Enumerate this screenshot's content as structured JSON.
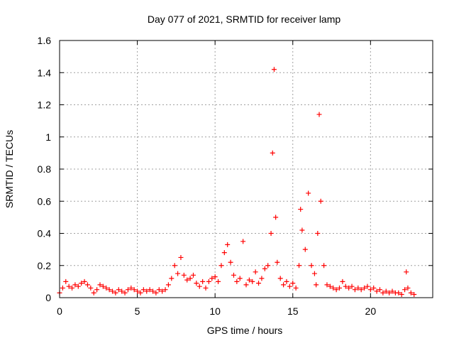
{
  "chart_data": {
    "type": "scatter",
    "title": "Day 077 of 2021, SRMTID for receiver lamp",
    "xlabel": "GPS time / hours",
    "ylabel": "SRMTID / TECUs",
    "xlim": [
      0,
      24
    ],
    "ylim": [
      0,
      1.6
    ],
    "xticks": [
      0,
      5,
      10,
      15,
      20
    ],
    "xtick_labels": [
      "0",
      "5",
      "10",
      "15",
      "20"
    ],
    "yticks": [
      0,
      0.2,
      0.4,
      0.6,
      0.8,
      1.0,
      1.2,
      1.4,
      1.6
    ],
    "ytick_labels": [
      "0",
      "0.2",
      "0.4",
      "0.6",
      "0.8",
      "1",
      "1.2",
      "1.4",
      "1.6"
    ],
    "grid": true,
    "marker": "+",
    "color": "#ff0000",
    "series": [
      {
        "name": "SRMTID",
        "x": [
          0.0,
          0.2,
          0.4,
          0.6,
          0.8,
          1.0,
          1.2,
          1.4,
          1.6,
          1.8,
          2.0,
          2.2,
          2.4,
          2.6,
          2.8,
          3.0,
          3.2,
          3.4,
          3.6,
          3.8,
          4.0,
          4.2,
          4.4,
          4.6,
          4.8,
          5.0,
          5.2,
          5.4,
          5.6,
          5.8,
          6.0,
          6.2,
          6.4,
          6.6,
          6.8,
          7.0,
          7.2,
          7.4,
          7.6,
          7.8,
          8.0,
          8.2,
          8.4,
          8.6,
          8.8,
          9.0,
          9.2,
          9.4,
          9.6,
          9.8,
          10.0,
          10.2,
          10.4,
          10.6,
          10.8,
          11.0,
          11.2,
          11.4,
          11.6,
          11.8,
          12.0,
          12.2,
          12.4,
          12.6,
          12.8,
          13.0,
          13.2,
          13.4,
          13.6,
          13.7,
          13.8,
          13.9,
          14.0,
          14.2,
          14.4,
          14.6,
          14.8,
          15.0,
          15.2,
          15.4,
          15.5,
          15.6,
          15.8,
          16.0,
          16.2,
          16.4,
          16.5,
          16.6,
          16.7,
          16.8,
          17.0,
          17.2,
          17.4,
          17.6,
          17.8,
          18.0,
          18.2,
          18.4,
          18.6,
          18.8,
          19.0,
          19.2,
          19.4,
          19.6,
          19.8,
          20.0,
          20.2,
          20.4,
          20.6,
          20.8,
          21.0,
          21.2,
          21.4,
          21.6,
          21.8,
          22.0,
          22.2,
          22.3,
          22.4,
          22.6,
          22.8
        ],
        "y": [
          0.03,
          0.06,
          0.1,
          0.07,
          0.06,
          0.08,
          0.07,
          0.09,
          0.1,
          0.08,
          0.06,
          0.03,
          0.05,
          0.08,
          0.07,
          0.06,
          0.05,
          0.04,
          0.03,
          0.05,
          0.04,
          0.03,
          0.05,
          0.06,
          0.05,
          0.04,
          0.03,
          0.05,
          0.04,
          0.05,
          0.04,
          0.03,
          0.05,
          0.04,
          0.05,
          0.08,
          0.12,
          0.2,
          0.15,
          0.25,
          0.14,
          0.11,
          0.12,
          0.14,
          0.09,
          0.07,
          0.1,
          0.06,
          0.1,
          0.12,
          0.13,
          0.1,
          0.2,
          0.28,
          0.33,
          0.22,
          0.14,
          0.1,
          0.12,
          0.35,
          0.08,
          0.11,
          0.1,
          0.16,
          0.09,
          0.12,
          0.18,
          0.2,
          0.4,
          0.9,
          1.42,
          0.5,
          0.22,
          0.12,
          0.08,
          0.1,
          0.07,
          0.09,
          0.06,
          0.2,
          0.55,
          0.42,
          0.3,
          0.65,
          0.2,
          0.15,
          0.08,
          0.4,
          1.14,
          0.6,
          0.2,
          0.08,
          0.07,
          0.06,
          0.05,
          0.06,
          0.1,
          0.07,
          0.06,
          0.07,
          0.05,
          0.06,
          0.05,
          0.06,
          0.07,
          0.05,
          0.06,
          0.04,
          0.05,
          0.03,
          0.04,
          0.03,
          0.04,
          0.03,
          0.03,
          0.02,
          0.05,
          0.16,
          0.06,
          0.03,
          0.02
        ]
      }
    ]
  }
}
